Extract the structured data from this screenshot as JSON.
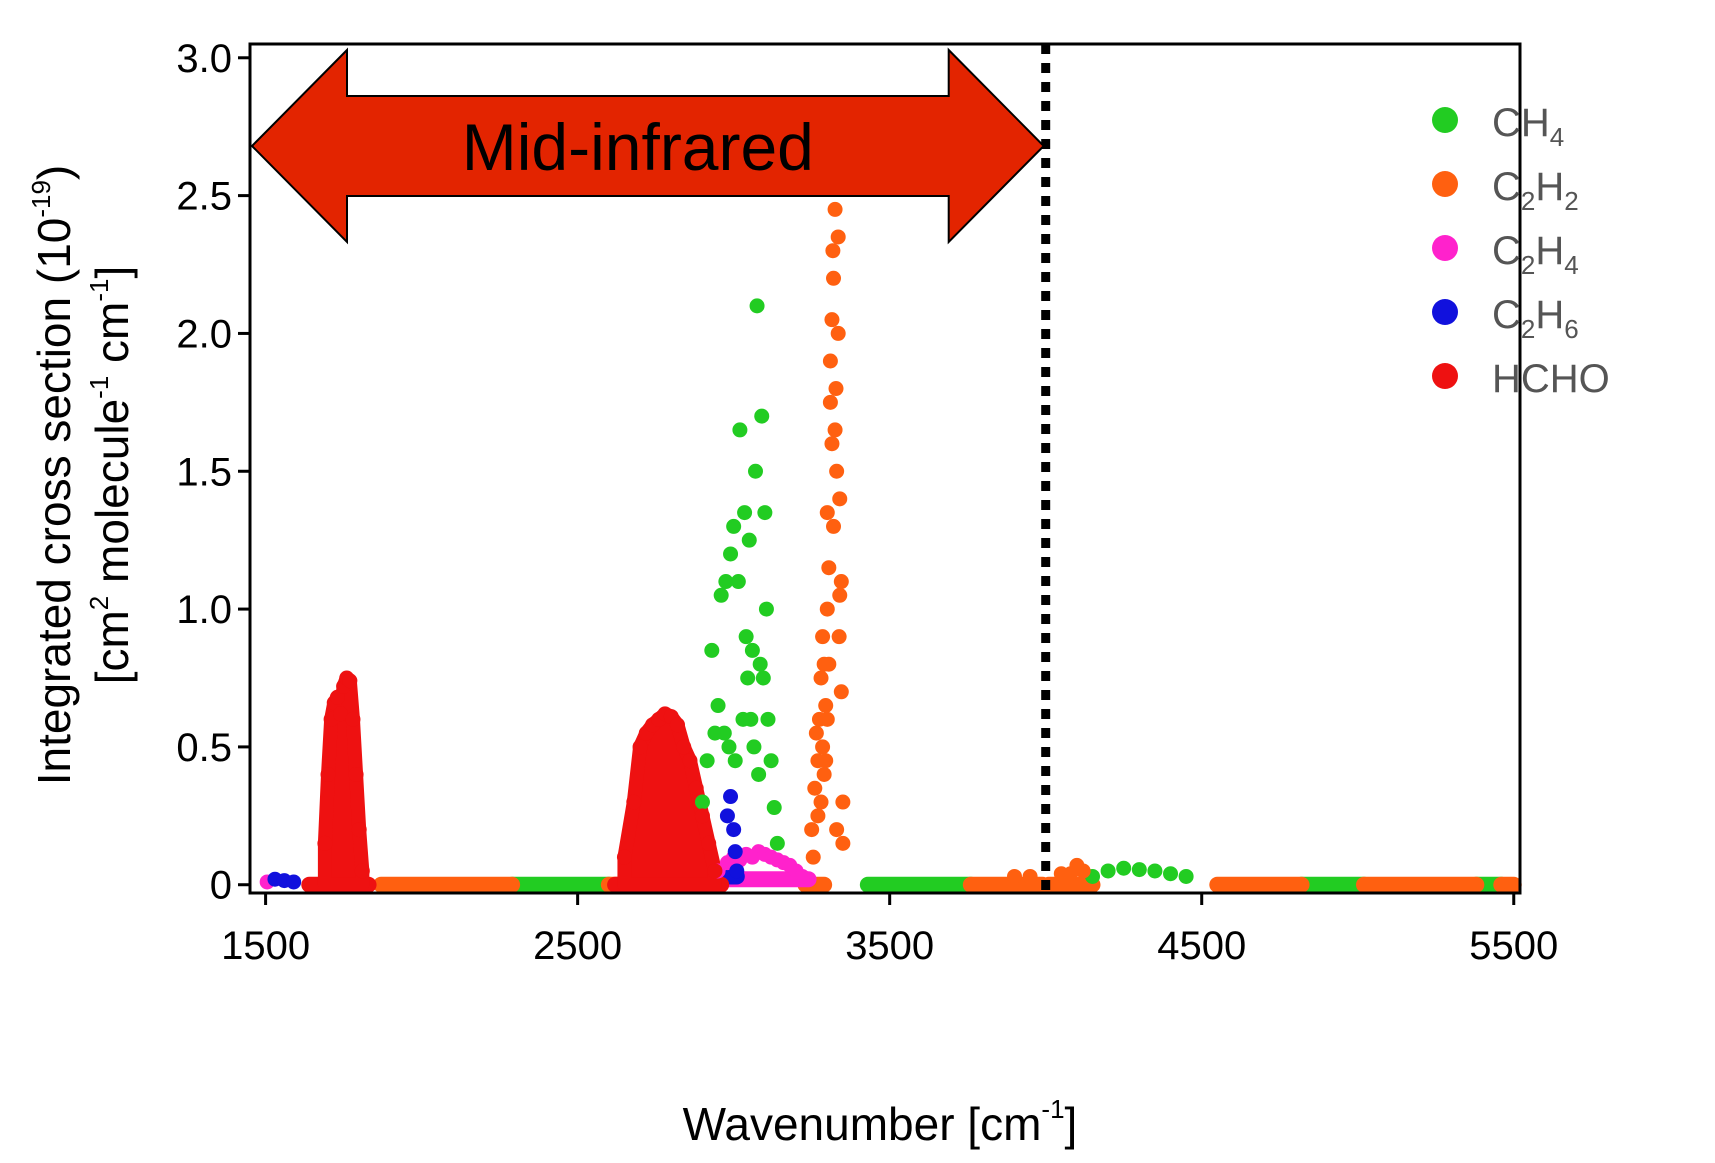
{
  "chart_data": {
    "type": "scatter",
    "title": "",
    "xlabel": {
      "main": "Wavenumber [cm",
      "sup": "-1",
      "close": "]"
    },
    "ylabel": {
      "line1_main": "Integrated cross section (10",
      "line1_sup": "-19",
      "line1_close": ")",
      "line2_open": "[cm",
      "line2_sup1": "2",
      "line2_mid": " molecule",
      "line2_sup2": "-1",
      "line2_unit": " cm",
      "line2_sup3": "-1",
      "line2_close": "]"
    },
    "xlim": [
      1450,
      5520
    ],
    "ylim": [
      -0.03,
      3.05
    ],
    "xticks": [
      1500,
      2500,
      3500,
      4500,
      5500
    ],
    "xtick_labels": [
      "1500",
      "2500",
      "3500",
      "4500",
      "5500"
    ],
    "yticks": [
      0,
      0.5,
      1.0,
      1.5,
      2.0,
      2.5,
      3.0
    ],
    "ytick_labels": [
      "0",
      "0.5",
      "1.0",
      "1.5",
      "2.0",
      "2.5",
      "3.0"
    ],
    "grid": false,
    "legend_position": "top-right",
    "annotation": {
      "text": "Mid-infrared",
      "x_start": 1450,
      "x_end": 4000,
      "y": 2.68,
      "color": "#e32400"
    },
    "vline": {
      "x": 4000,
      "style": "dotted"
    },
    "series": [
      {
        "name": "CH4",
        "label_base": "CH",
        "label_sub": "4",
        "color": "#22cc22",
        "x": [
          2900,
          2915,
          2930,
          2940,
          2950,
          2960,
          2970,
          2975,
          2985,
          2990,
          3000,
          3005,
          3015,
          3020,
          3030,
          3035,
          3040,
          3045,
          3050,
          3055,
          3060,
          3065,
          3070,
          3075,
          3080,
          3085,
          3090,
          3095,
          3100,
          3105,
          3110,
          3120,
          3130,
          3140,
          4150,
          4200,
          4250,
          4300,
          4350,
          4400,
          4450
        ],
        "y": [
          0.3,
          0.45,
          0.85,
          0.55,
          0.65,
          1.05,
          0.55,
          1.1,
          0.5,
          1.2,
          1.3,
          0.45,
          1.1,
          1.65,
          0.6,
          1.35,
          0.9,
          0.75,
          1.25,
          0.6,
          0.85,
          0.5,
          1.5,
          2.1,
          0.4,
          0.8,
          1.7,
          0.75,
          1.35,
          1.0,
          0.6,
          0.45,
          0.28,
          0.15,
          0.03,
          0.05,
          0.06,
          0.055,
          0.05,
          0.04,
          0.03
        ],
        "bands": [
          [
            2290,
            2600,
            0
          ],
          [
            3430,
            3760,
            0
          ],
          [
            4820,
            5020,
            0
          ],
          [
            5380,
            5460,
            0
          ]
        ]
      },
      {
        "name": "C2H2",
        "label_base": "C",
        "label_sub": "2",
        "label_mid": "H",
        "label_sub2": "2",
        "color": "#ff6010",
        "x": [
          3250,
          3260,
          3270,
          3275,
          3280,
          3285,
          3290,
          3295,
          3300,
          3305,
          3310,
          3315,
          3320,
          3325,
          3330,
          3335,
          3340,
          3345,
          3350,
          3255,
          3265,
          3285,
          3300,
          3320,
          3335,
          3345,
          3310,
          3290,
          3325,
          3340,
          3280,
          3315,
          3330,
          3300,
          3350,
          3270,
          3305,
          3318,
          3328,
          3295,
          3338,
          4100,
          4120,
          4080,
          3900,
          3950,
          4050
        ],
        "y": [
          0.2,
          0.35,
          0.45,
          0.6,
          0.75,
          0.5,
          0.8,
          0.65,
          1.35,
          0.8,
          1.75,
          2.05,
          2.2,
          1.65,
          1.5,
          2.0,
          1.4,
          1.1,
          0.3,
          0.1,
          0.55,
          0.9,
          1.0,
          1.3,
          2.35,
          0.7,
          1.9,
          0.4,
          2.45,
          1.05,
          0.3,
          1.6,
          0.2,
          0.6,
          0.15,
          0.25,
          1.15,
          2.3,
          1.8,
          0.45,
          0.9,
          0.07,
          0.05,
          0.04,
          0.03,
          0.03,
          0.04
        ],
        "bands": [
          [
            1870,
            2290,
            0
          ],
          [
            2600,
            2700,
            0
          ],
          [
            3230,
            3290,
            0
          ],
          [
            3760,
            3990,
            0
          ],
          [
            4010,
            4150,
            0
          ],
          [
            4550,
            4820,
            0
          ],
          [
            5020,
            5380,
            0
          ],
          [
            5460,
            5500,
            0
          ]
        ]
      },
      {
        "name": "C2H4",
        "label_base": "C",
        "label_sub": "2",
        "label_mid": "H",
        "label_sub2": "4",
        "color": "#ff22cc",
        "x": [
          1505,
          2950,
          2980,
          3000,
          3020,
          3040,
          3060,
          3080,
          3100,
          3120,
          3140,
          3160,
          3180,
          3200,
          3220
        ],
        "y": [
          0.01,
          0.05,
          0.08,
          0.1,
          0.09,
          0.11,
          0.1,
          0.12,
          0.11,
          0.1,
          0.09,
          0.08,
          0.07,
          0.05,
          0.03
        ],
        "bands": [
          [
            2920,
            3240,
            0.02
          ]
        ]
      },
      {
        "name": "C2H6",
        "label_base": "C",
        "label_sub": "2",
        "label_mid": "H",
        "label_sub2": "6",
        "color": "#1111dd",
        "x": [
          1530,
          1560,
          1590,
          2980,
          2990,
          3000,
          3005,
          3010
        ],
        "y": [
          0.02,
          0.015,
          0.01,
          0.25,
          0.32,
          0.2,
          0.12,
          0.05
        ],
        "bands": [
          [
            2990,
            3010,
            0.03
          ]
        ]
      },
      {
        "name": "HCHO",
        "label_base": "HCHO",
        "color": "#ee1111",
        "x": [
          1690,
          1700,
          1710,
          1720,
          1730,
          1740,
          1750,
          1760,
          1770,
          1780,
          1790,
          1800,
          1810,
          2650,
          2680,
          2700,
          2720,
          2740,
          2760,
          2780,
          2800,
          2820,
          2840,
          2860,
          2880,
          2900,
          2920,
          2940
        ],
        "y": [
          0.15,
          0.4,
          0.6,
          0.66,
          0.68,
          0.62,
          0.72,
          0.75,
          0.74,
          0.6,
          0.4,
          0.2,
          0.05,
          0.1,
          0.3,
          0.5,
          0.55,
          0.58,
          0.6,
          0.62,
          0.61,
          0.58,
          0.5,
          0.45,
          0.35,
          0.25,
          0.15,
          0.05
        ],
        "bands": [
          [
            1640,
            1830,
            0
          ],
          [
            2620,
            2960,
            0
          ]
        ]
      }
    ]
  }
}
